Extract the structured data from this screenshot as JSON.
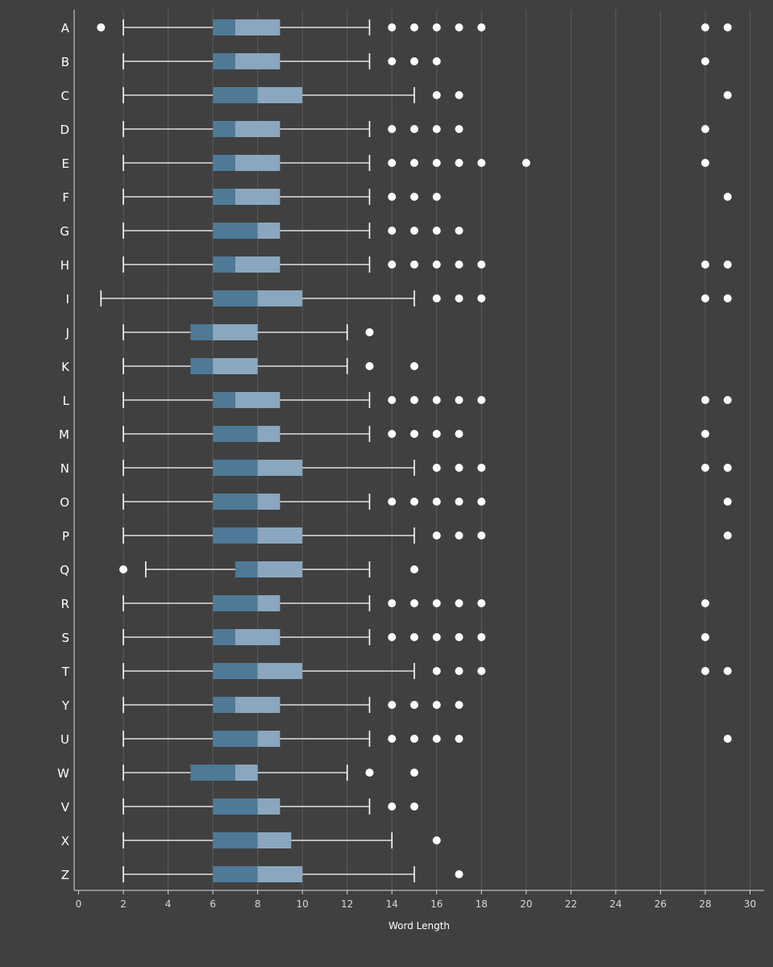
{
  "chart_data": {
    "type": "box",
    "orientation": "horizontal",
    "xlabel": "Word Length",
    "xlim": [
      0,
      30
    ],
    "xticks": [
      0,
      2,
      4,
      6,
      8,
      10,
      12,
      14,
      16,
      18,
      20,
      22,
      24,
      26,
      28,
      30
    ],
    "grid": "vertical",
    "colors": {
      "background": "#404040",
      "lower_box": "#4e7a98",
      "upper_box": "#8aa7bf",
      "whisker": "#ffffff",
      "outlier": "#ffffff",
      "grid": "#5c5c5c",
      "axis": "#d9d9d9"
    },
    "categories": [
      "A",
      "B",
      "C",
      "D",
      "E",
      "F",
      "G",
      "H",
      "I",
      "J",
      "K",
      "L",
      "M",
      "N",
      "O",
      "P",
      "Q",
      "R",
      "S",
      "T",
      "Y",
      "U",
      "W",
      "V",
      "X",
      "Z"
    ],
    "boxes": [
      {
        "label": "A",
        "whisker_low": 2,
        "q1": 6,
        "median": 7,
        "q3": 9,
        "whisker_high": 13,
        "outliers": [
          1,
          14,
          15,
          16,
          17,
          18,
          28,
          29
        ]
      },
      {
        "label": "B",
        "whisker_low": 2,
        "q1": 6,
        "median": 7,
        "q3": 9,
        "whisker_high": 13,
        "outliers": [
          14,
          15,
          16,
          28
        ]
      },
      {
        "label": "C",
        "whisker_low": 2,
        "q1": 6,
        "median": 8,
        "q3": 10,
        "whisker_high": 15,
        "outliers": [
          16,
          17,
          29
        ]
      },
      {
        "label": "D",
        "whisker_low": 2,
        "q1": 6,
        "median": 7,
        "q3": 9,
        "whisker_high": 13,
        "outliers": [
          14,
          15,
          16,
          17,
          28
        ]
      },
      {
        "label": "E",
        "whisker_low": 2,
        "q1": 6,
        "median": 7,
        "q3": 9,
        "whisker_high": 13,
        "outliers": [
          14,
          15,
          16,
          17,
          18,
          20,
          28
        ]
      },
      {
        "label": "F",
        "whisker_low": 2,
        "q1": 6,
        "median": 7,
        "q3": 9,
        "whisker_high": 13,
        "outliers": [
          14,
          15,
          16,
          29
        ]
      },
      {
        "label": "G",
        "whisker_low": 2,
        "q1": 6,
        "median": 8,
        "q3": 9,
        "whisker_high": 13,
        "outliers": [
          14,
          15,
          16,
          17
        ]
      },
      {
        "label": "H",
        "whisker_low": 2,
        "q1": 6,
        "median": 7,
        "q3": 9,
        "whisker_high": 13,
        "outliers": [
          14,
          15,
          16,
          17,
          18,
          28,
          29
        ]
      },
      {
        "label": "I",
        "whisker_low": 1,
        "q1": 6,
        "median": 8,
        "q3": 10,
        "whisker_high": 15,
        "outliers": [
          16,
          17,
          18,
          28,
          29
        ]
      },
      {
        "label": "J",
        "whisker_low": 2,
        "q1": 5,
        "median": 6,
        "q3": 8,
        "whisker_high": 12,
        "outliers": [
          13
        ]
      },
      {
        "label": "K",
        "whisker_low": 2,
        "q1": 5,
        "median": 6,
        "q3": 8,
        "whisker_high": 12,
        "outliers": [
          13,
          15
        ]
      },
      {
        "label": "L",
        "whisker_low": 2,
        "q1": 6,
        "median": 7,
        "q3": 9,
        "whisker_high": 13,
        "outliers": [
          14,
          15,
          16,
          17,
          18,
          28,
          29
        ]
      },
      {
        "label": "M",
        "whisker_low": 2,
        "q1": 6,
        "median": 8,
        "q3": 9,
        "whisker_high": 13,
        "outliers": [
          14,
          15,
          16,
          17,
          28
        ]
      },
      {
        "label": "N",
        "whisker_low": 2,
        "q1": 6,
        "median": 8,
        "q3": 10,
        "whisker_high": 15,
        "outliers": [
          16,
          17,
          18,
          28,
          29
        ]
      },
      {
        "label": "O",
        "whisker_low": 2,
        "q1": 6,
        "median": 8,
        "q3": 9,
        "whisker_high": 13,
        "outliers": [
          14,
          15,
          16,
          17,
          18,
          29
        ]
      },
      {
        "label": "P",
        "whisker_low": 2,
        "q1": 6,
        "median": 8,
        "q3": 10,
        "whisker_high": 15,
        "outliers": [
          16,
          17,
          18,
          29
        ]
      },
      {
        "label": "Q",
        "whisker_low": 3,
        "q1": 7,
        "median": 8,
        "q3": 10,
        "whisker_high": 13,
        "outliers": [
          2,
          15
        ]
      },
      {
        "label": "R",
        "whisker_low": 2,
        "q1": 6,
        "median": 8,
        "q3": 9,
        "whisker_high": 13,
        "outliers": [
          14,
          15,
          16,
          17,
          18,
          28
        ]
      },
      {
        "label": "S",
        "whisker_low": 2,
        "q1": 6,
        "median": 7,
        "q3": 9,
        "whisker_high": 13,
        "outliers": [
          14,
          15,
          16,
          17,
          18,
          28
        ]
      },
      {
        "label": "T",
        "whisker_low": 2,
        "q1": 6,
        "median": 8,
        "q3": 10,
        "whisker_high": 15,
        "outliers": [
          16,
          17,
          18,
          28,
          29
        ]
      },
      {
        "label": "Y",
        "whisker_low": 2,
        "q1": 6,
        "median": 7,
        "q3": 9,
        "whisker_high": 13,
        "outliers": [
          14,
          15,
          16,
          17
        ]
      },
      {
        "label": "U",
        "whisker_low": 2,
        "q1": 6,
        "median": 8,
        "q3": 9,
        "whisker_high": 13,
        "outliers": [
          14,
          15,
          16,
          17,
          29
        ]
      },
      {
        "label": "W",
        "whisker_low": 2,
        "q1": 5,
        "median": 7,
        "q3": 8,
        "whisker_high": 12,
        "outliers": [
          13,
          15
        ]
      },
      {
        "label": "V",
        "whisker_low": 2,
        "q1": 6,
        "median": 8,
        "q3": 9,
        "whisker_high": 13,
        "outliers": [
          14,
          15
        ]
      },
      {
        "label": "X",
        "whisker_low": 2,
        "q1": 6,
        "median": 8,
        "q3": 9.5,
        "whisker_high": 14,
        "outliers": [
          16
        ]
      },
      {
        "label": "Z",
        "whisker_low": 2,
        "q1": 6,
        "median": 8,
        "q3": 10,
        "whisker_high": 15,
        "outliers": [
          17
        ]
      }
    ]
  }
}
